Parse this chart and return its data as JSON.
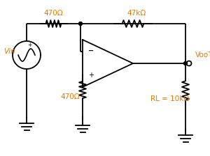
{
  "bg_color": "#ffffff",
  "text_color": "#e87800",
  "line_color": "#000000",
  "labels": {
    "R1": "470Ω",
    "R2": "47kΩ",
    "R3": "470Ω",
    "RL": "RL = 10kΩ",
    "Vin": "Vin",
    "Vout": "VooT"
  },
  "figsize": [
    3.0,
    2.24
  ],
  "dpi": 100
}
